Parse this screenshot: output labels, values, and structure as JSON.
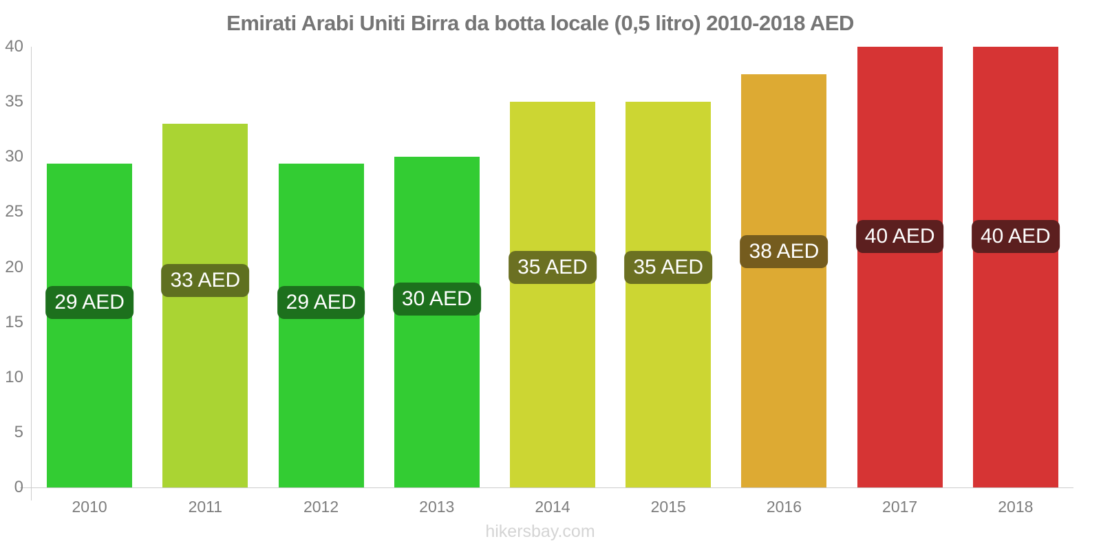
{
  "header": {
    "title": "Emirati Arabi Uniti Birra da botta locale (0,5 litro) 2010-2018 AED",
    "title_color": "#757575"
  },
  "footer": {
    "text": "hikersbay.com",
    "color": "#d4d4d4"
  },
  "chart_data": {
    "type": "bar",
    "title": "Emirati Arabi Uniti Birra da botta locale (0,5 litro) 2010-2018 AED",
    "unit": "AED",
    "categories": [
      "2010",
      "2011",
      "2012",
      "2013",
      "2014",
      "2015",
      "2016",
      "2017",
      "2018"
    ],
    "values": [
      29,
      33,
      29,
      30,
      35,
      35,
      38,
      40,
      40
    ],
    "bar_display_heights": [
      29.4,
      33,
      29.4,
      30,
      35,
      35,
      37.5,
      40,
      40
    ],
    "bar_labels": [
      "29 AED",
      "33 AED",
      "29 AED",
      "30 AED",
      "35 AED",
      "35 AED",
      "38 AED",
      "40 AED",
      "40 AED"
    ],
    "bar_colors": [
      "#33cc33",
      "#aad433",
      "#33cc33",
      "#33cc33",
      "#ccd633",
      "#ccd633",
      "#ddaa33",
      "#d63434",
      "#d63434"
    ],
    "label_bg_colors": [
      "#1d701d",
      "#5f7020",
      "#1d701d",
      "#1d701d",
      "#6b7022",
      "#6b7022",
      "#755c1e",
      "#5c1f1f",
      "#5c1f1f"
    ],
    "xlabel": "",
    "ylabel": "",
    "ylim": [
      0,
      40
    ],
    "yticks": [
      0,
      5,
      10,
      15,
      20,
      25,
      30,
      35,
      40
    ],
    "grid": "off",
    "legend": "none",
    "axis_color": "#cccccc",
    "tick_label_color": "#7d7d7d"
  }
}
